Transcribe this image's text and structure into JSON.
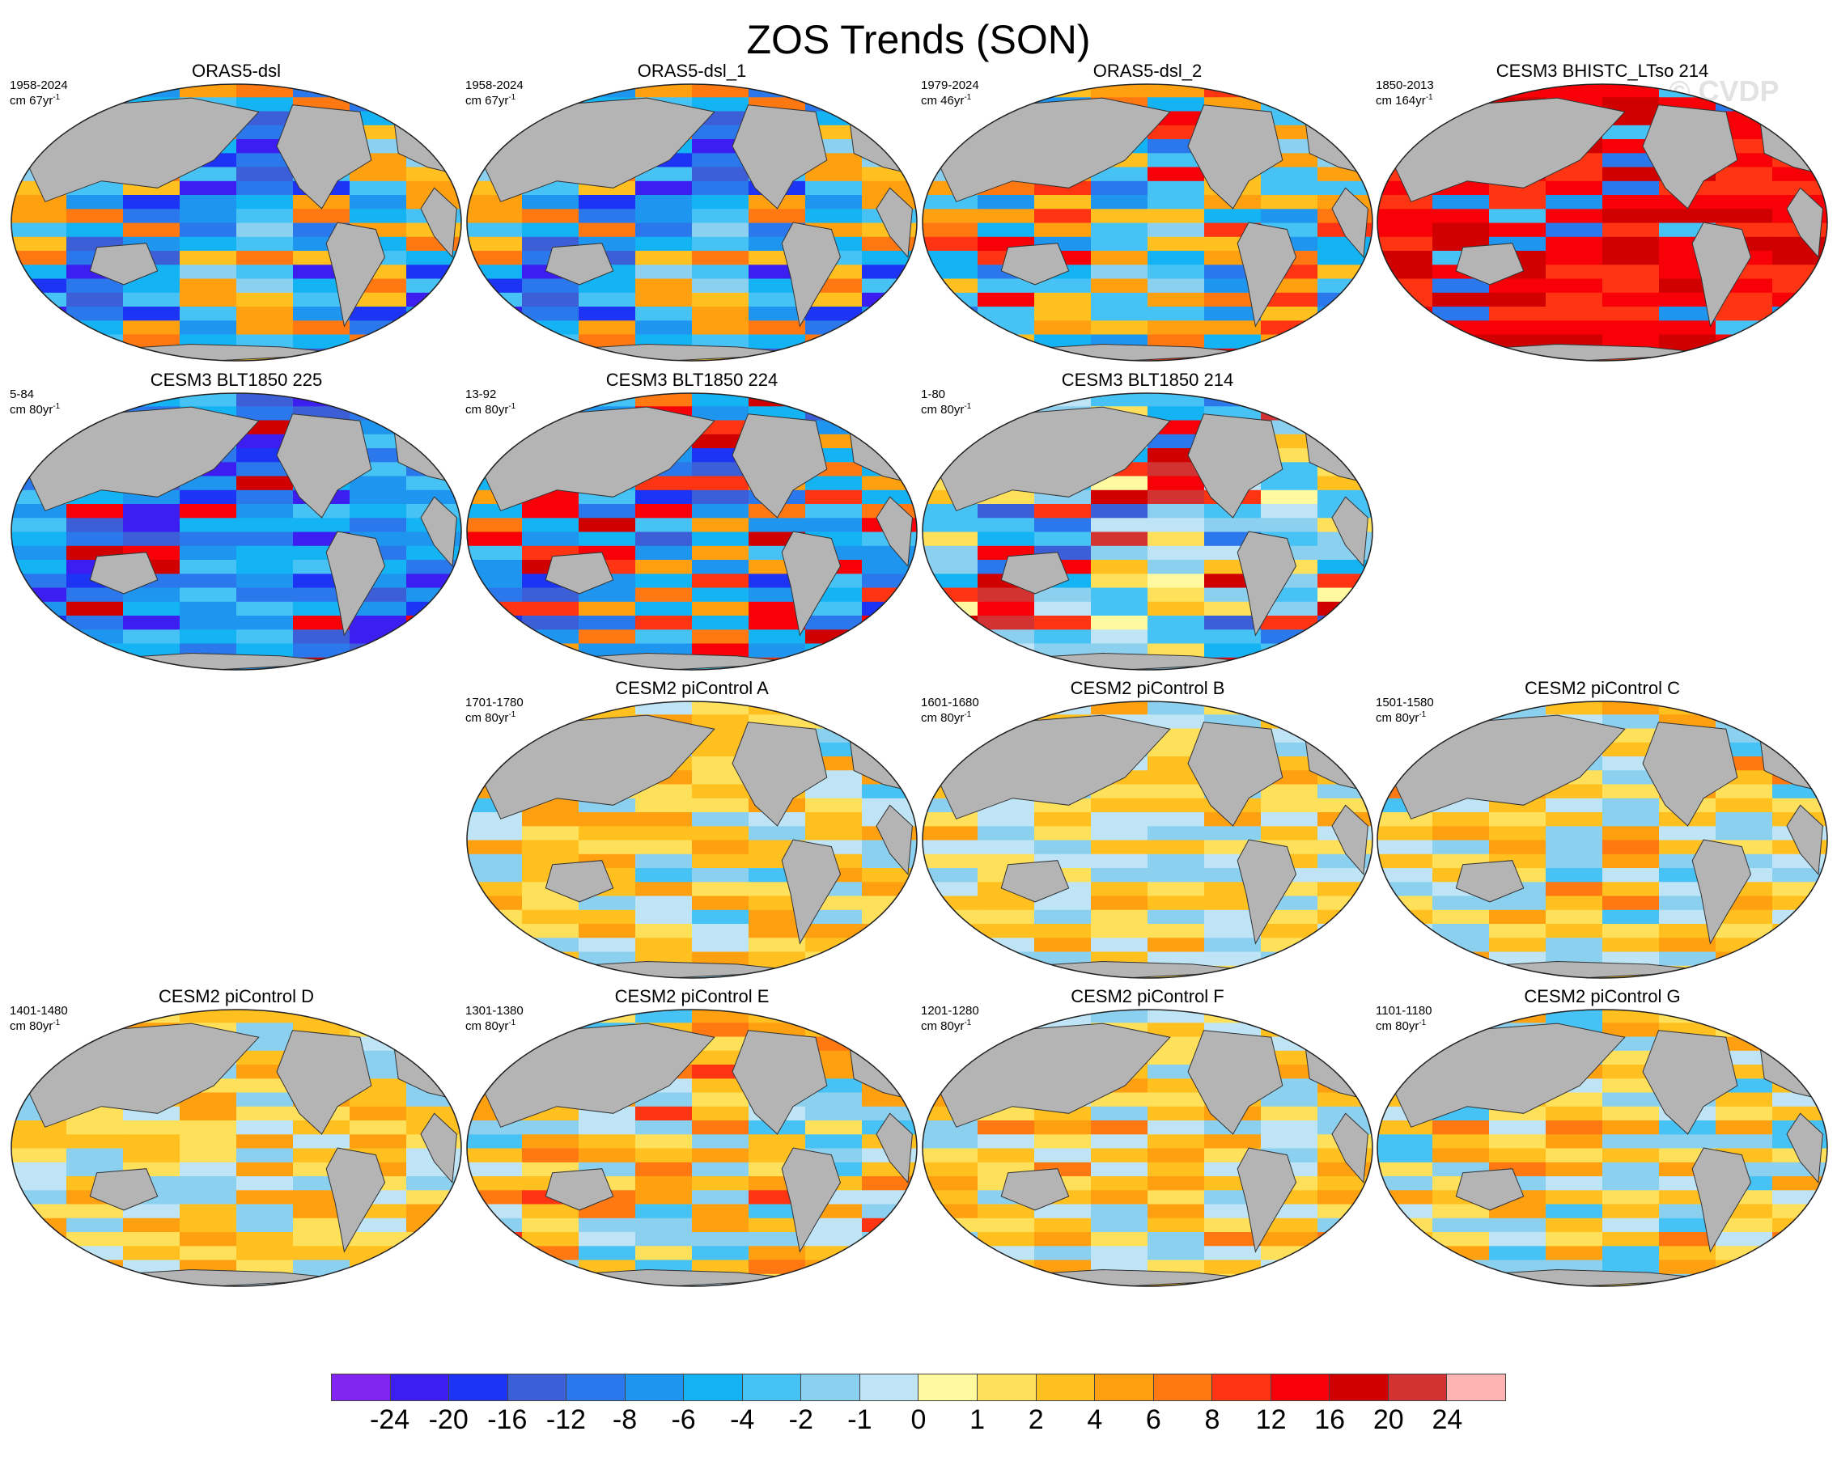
{
  "title": "ZOS Trends (SON)",
  "watermark": "© CVDP",
  "colors": {
    "land": "#b4b4b4",
    "palette": [
      "#8225f0",
      "#3c1ff0",
      "#1e34f5",
      "#3c5fd8",
      "#2a78ec",
      "#1e96f0",
      "#14b4f4",
      "#46c2f4",
      "#8cd0ef",
      "#bee4f6",
      "#fffaa0",
      "#ffe05a",
      "#ffc020",
      "#ffa010",
      "#ff7812",
      "#ff3412",
      "#f80008",
      "#d00000",
      "#d23232",
      "#ffb4b4"
    ]
  },
  "colorbar": {
    "labels": [
      "-24",
      "-20",
      "-16",
      "-12",
      "-8",
      "-6",
      "-4",
      "-2",
      "-1",
      "0",
      "1",
      "2",
      "4",
      "6",
      "8",
      "12",
      "16",
      "20",
      "24"
    ]
  },
  "panels": [
    {
      "title": "ORAS5-dsl",
      "period": "1958-2024",
      "units": "cm 67yr",
      "exp": "-1",
      "pattern": [
        -6,
        -4,
        -2,
        4,
        6,
        -4,
        -8,
        2,
        4,
        -6,
        -4,
        2,
        6,
        -6,
        -20,
        -12,
        -24,
        -8,
        -16,
        -12
      ]
    },
    {
      "title": "ORAS5-dsl_1",
      "period": "1958-2024",
      "units": "cm 67yr",
      "exp": "-1",
      "pattern": [
        -6,
        -4,
        -2,
        4,
        6,
        -4,
        -8,
        2,
        4,
        -6,
        -4,
        2,
        6,
        -6,
        -20,
        -12,
        -24,
        -8,
        -16,
        -12
      ]
    },
    {
      "title": "ORAS5-dsl_2",
      "period": "1979-2024",
      "units": "cm 46yr",
      "exp": "-1",
      "pattern": [
        -4,
        2,
        -2,
        4,
        -6,
        -4,
        2,
        4,
        -4,
        -8,
        6,
        8,
        4,
        -6,
        2,
        8,
        -12,
        -8,
        12,
        -4
      ]
    },
    {
      "title": "CESM3 BHISTC_LTso 214",
      "period": "1850-2013",
      "units": "cm 164yr",
      "exp": "-1",
      "pattern": [
        12,
        16,
        8,
        12,
        16,
        8,
        12,
        12,
        8,
        16,
        12,
        8,
        12,
        16,
        8,
        -4,
        12,
        -8,
        16,
        -12
      ]
    },
    {
      "title": "CESM3 BLT1850 225",
      "period": "5-84",
      "units": "cm 80yr",
      "exp": "-1",
      "pattern": [
        -8,
        -6,
        -12,
        -4,
        -6,
        -8,
        -6,
        -4,
        -8,
        -12,
        -6,
        -8,
        -16,
        -12,
        -24,
        -24,
        -20,
        12,
        16,
        -12
      ]
    },
    {
      "title": "CESM3 BLT1850 224",
      "period": "13-92",
      "units": "cm 80yr",
      "exp": "-1",
      "pattern": [
        -8,
        4,
        -6,
        6,
        -8,
        8,
        -4,
        4,
        -6,
        -8,
        12,
        -4,
        -6,
        -8,
        -12,
        16,
        -20,
        12,
        8,
        -16
      ]
    },
    {
      "title": "CESM3 BLT1850 214",
      "period": "1-80",
      "units": "cm 80yr",
      "exp": "-1",
      "pattern": [
        -2,
        -1,
        1,
        -4,
        -2,
        0,
        -1,
        2,
        -4,
        -2,
        1,
        -2,
        -4,
        -6,
        8,
        -12,
        16,
        -16,
        12,
        20
      ]
    },
    {
      "title": "CESM2 piControl A",
      "period": "1701-1780",
      "units": "cm 80yr",
      "exp": "-1",
      "pattern": [
        -2,
        2,
        4,
        -1,
        -2,
        1,
        2,
        -4,
        -1,
        2,
        4,
        -2,
        1,
        2,
        4,
        2,
        1,
        4,
        2,
        1
      ]
    },
    {
      "title": "CESM2 piControl B",
      "period": "1601-1680",
      "units": "cm 80yr",
      "exp": "-1",
      "pattern": [
        -1,
        -2,
        2,
        4,
        -2,
        1,
        -1,
        -2,
        1,
        2,
        -1,
        1,
        -2,
        -1,
        2,
        1,
        2,
        -1,
        1,
        2
      ]
    },
    {
      "title": "CESM2 piControl C",
      "period": "1501-1580",
      "units": "cm 80yr",
      "exp": "-1",
      "pattern": [
        -2,
        4,
        6,
        2,
        -1,
        2,
        -2,
        -4,
        1,
        -2,
        -1,
        2,
        4,
        -2,
        1,
        2,
        -1,
        2,
        1,
        -2
      ]
    },
    {
      "title": "CESM2 piControl D",
      "period": "1401-1480",
      "units": "cm 80yr",
      "exp": "-1",
      "pattern": [
        -1,
        4,
        -2,
        2,
        -1,
        4,
        1,
        -2,
        2,
        4,
        1,
        -1,
        2,
        -2,
        1,
        2,
        4,
        1,
        -2,
        1
      ]
    },
    {
      "title": "CESM2 piControl E",
      "period": "1301-1380",
      "units": "cm 80yr",
      "exp": "-1",
      "pattern": [
        6,
        -2,
        4,
        -4,
        2,
        -2,
        1,
        4,
        -2,
        -4,
        2,
        -1,
        4,
        6,
        -1,
        2,
        8,
        -2,
        1,
        2
      ]
    },
    {
      "title": "CESM2 piControl F",
      "period": "1201-1280",
      "units": "cm 80yr",
      "exp": "-1",
      "pattern": [
        -1,
        2,
        4,
        -2,
        4,
        1,
        -1,
        2,
        -2,
        -1,
        1,
        2,
        -1,
        2,
        4,
        1,
        -2,
        6,
        1,
        2
      ]
    },
    {
      "title": "CESM2 piControl G",
      "period": "1101-1180",
      "units": "cm 80yr",
      "exp": "-1",
      "pattern": [
        4,
        -2,
        2,
        -4,
        -2,
        1,
        4,
        -1,
        2,
        -2,
        -4,
        1,
        2,
        4,
        -1,
        1,
        2,
        6,
        -2,
        1
      ]
    }
  ]
}
